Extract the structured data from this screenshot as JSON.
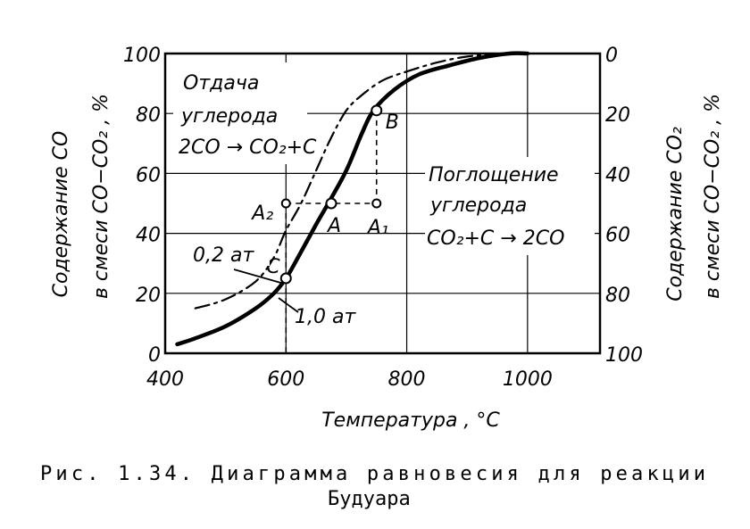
{
  "chart_data": {
    "type": "line",
    "xlabel": "Температура , °С",
    "ylabel_left": [
      "Содержание CO",
      "в смеси CO−CO₂ , %"
    ],
    "ylabel_right": [
      "Содержание CO₂",
      "в смеси CO−CO₂ , %"
    ],
    "xlim": [
      400,
      1120
    ],
    "ylim": [
      0,
      100
    ],
    "x_ticks": [
      "400",
      "600",
      "800",
      "1000"
    ],
    "y_ticks_left": [
      "0",
      "20",
      "40",
      "60",
      "80",
      "100"
    ],
    "y_ticks_right": [
      "100",
      "80",
      "60",
      "40",
      "20",
      "0"
    ],
    "grid": true,
    "series": [
      {
        "name": "1,0 ат",
        "style": "solid",
        "x": [
          420,
          450,
          500,
          550,
          580,
          600,
          620,
          650,
          670,
          700,
          725,
          745,
          780,
          820,
          870,
          920,
          970,
          1000
        ],
        "y": [
          3,
          5,
          9,
          15,
          20,
          25,
          32,
          43,
          50,
          61,
          73,
          81,
          88,
          93,
          96,
          98.5,
          100,
          100
        ]
      },
      {
        "name": "0,2 ат",
        "style": "dashdot",
        "x": [
          450,
          500,
          550,
          580,
          600,
          625,
          650,
          675,
          700,
          725,
          760,
          800,
          850,
          900,
          960
        ],
        "y": [
          15,
          18,
          24,
          32,
          41,
          50,
          61,
          72,
          81,
          86,
          91,
          94,
          97,
          99,
          100
        ]
      }
    ],
    "points": [
      {
        "label": "A",
        "x": 675,
        "y": 50
      },
      {
        "label": "A₁",
        "x": 750,
        "y": 50
      },
      {
        "label": "A₂",
        "x": 600,
        "y": 50
      },
      {
        "label": "B",
        "x": 750,
        "y": 81
      },
      {
        "label": "C",
        "x": 600,
        "y": 25
      }
    ],
    "annotations": {
      "region_left": [
        "Отдача",
        "углерода",
        "2CO → CO₂+C"
      ],
      "region_right": [
        "Поглощение",
        "углерода",
        "CO₂+C → 2CO"
      ],
      "curve_label_low": "0,2 ат",
      "curve_label_high": "1,0 ат"
    }
  },
  "caption": {
    "line1": "Рис. 1.34. Диаграмма равновесия для реакции",
    "line2": "Будуара"
  }
}
